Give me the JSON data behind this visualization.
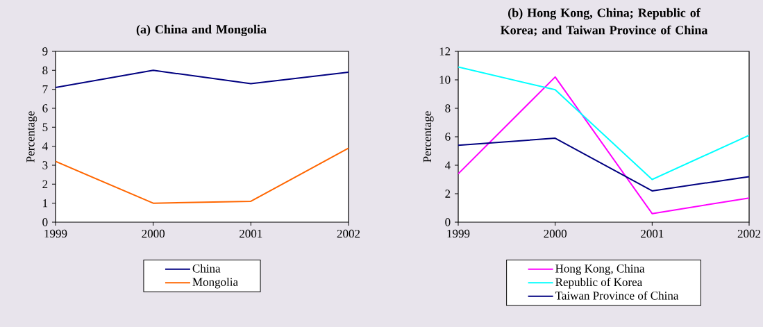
{
  "chart_data": [
    {
      "type": "line",
      "title": "(a)  China and Mongolia",
      "ylabel": "Percentage",
      "categories": [
        "1999",
        "2000",
        "2001",
        "2002"
      ],
      "ylim": [
        0,
        9
      ],
      "yticks": [
        0,
        1,
        2,
        3,
        4,
        5,
        6,
        7,
        8,
        9
      ],
      "legend": "bottom",
      "grid": false,
      "series": [
        {
          "name": "China",
          "color": "#000080",
          "values": [
            7.1,
            8.0,
            7.3,
            7.9
          ]
        },
        {
          "name": "Mongolia",
          "color": "#ff6600",
          "values": [
            3.2,
            1.0,
            1.1,
            3.9
          ]
        }
      ]
    },
    {
      "type": "line",
      "title": "(b)  Hong Kong, China; Republic of Korea; and Taiwan Province of China",
      "ylabel": "Percentage",
      "categories": [
        "1999",
        "2000",
        "2001",
        "2002"
      ],
      "ylim": [
        0,
        12
      ],
      "yticks": [
        0,
        2,
        4,
        6,
        8,
        10,
        12
      ],
      "legend": "bottom",
      "grid": false,
      "series": [
        {
          "name": "Hong Kong, China",
          "color": "#ff00ff",
          "values": [
            3.4,
            10.2,
            0.6,
            1.7
          ]
        },
        {
          "name": "Republic of Korea",
          "color": "#00ffff",
          "values": [
            10.9,
            9.3,
            3.0,
            6.1
          ]
        },
        {
          "name": "Taiwan Province of China",
          "color": "#000080",
          "values": [
            5.4,
            5.9,
            2.2,
            3.2
          ]
        }
      ]
    }
  ]
}
